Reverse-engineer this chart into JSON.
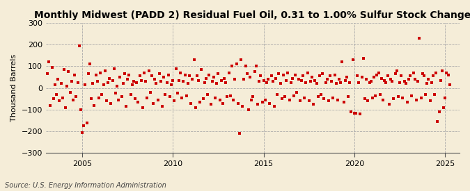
{
  "title": "Monthly Midwest (PADD 2) Residual Fuel Oil, 0.31 to 1.00% Sulfur Stock Change",
  "ylabel": "Thousand Barrels",
  "source": "Source: U.S. Energy Information Administration",
  "xlim": [
    2003.0,
    2025.8
  ],
  "ylim": [
    -300,
    300
  ],
  "xticks": [
    2005,
    2010,
    2015,
    2020,
    2025
  ],
  "yticks": [
    -300,
    -200,
    -100,
    0,
    100,
    200,
    300
  ],
  "background_color": "#F5EDD8",
  "plot_bg_color": "#F5EDD8",
  "marker_color": "#CC0000",
  "marker_size": 7,
  "title_fontsize": 10,
  "source_fontsize": 7,
  "data_x": [
    2003.08,
    2003.17,
    2003.25,
    2003.33,
    2003.42,
    2003.5,
    2003.58,
    2003.67,
    2003.75,
    2003.83,
    2003.92,
    2004.0,
    2004.08,
    2004.17,
    2004.25,
    2004.33,
    2004.42,
    2004.5,
    2004.58,
    2004.67,
    2004.75,
    2004.83,
    2004.92,
    2005.0,
    2005.08,
    2005.17,
    2005.25,
    2005.33,
    2005.42,
    2005.5,
    2005.58,
    2005.67,
    2005.75,
    2005.83,
    2005.92,
    2006.0,
    2006.08,
    2006.17,
    2006.25,
    2006.33,
    2006.42,
    2006.5,
    2006.58,
    2006.67,
    2006.75,
    2006.83,
    2006.92,
    2007.0,
    2007.08,
    2007.17,
    2007.25,
    2007.33,
    2007.42,
    2007.5,
    2007.58,
    2007.67,
    2007.75,
    2007.83,
    2007.92,
    2008.0,
    2008.08,
    2008.17,
    2008.25,
    2008.33,
    2008.42,
    2008.5,
    2008.58,
    2008.67,
    2008.75,
    2008.83,
    2008.92,
    2009.0,
    2009.08,
    2009.17,
    2009.25,
    2009.33,
    2009.42,
    2009.5,
    2009.58,
    2009.67,
    2009.75,
    2009.83,
    2009.92,
    2010.0,
    2010.08,
    2010.17,
    2010.25,
    2010.33,
    2010.42,
    2010.5,
    2010.58,
    2010.67,
    2010.75,
    2010.83,
    2010.92,
    2011.0,
    2011.08,
    2011.17,
    2011.25,
    2011.33,
    2011.42,
    2011.5,
    2011.58,
    2011.67,
    2011.75,
    2011.83,
    2011.92,
    2012.0,
    2012.08,
    2012.17,
    2012.25,
    2012.33,
    2012.42,
    2012.5,
    2012.58,
    2012.67,
    2012.75,
    2012.83,
    2012.92,
    2013.0,
    2013.08,
    2013.17,
    2013.25,
    2013.33,
    2013.42,
    2013.5,
    2013.58,
    2013.67,
    2013.75,
    2013.83,
    2013.92,
    2014.0,
    2014.08,
    2014.17,
    2014.25,
    2014.33,
    2014.42,
    2014.5,
    2014.58,
    2014.67,
    2014.75,
    2014.83,
    2014.92,
    2015.0,
    2015.08,
    2015.17,
    2015.25,
    2015.33,
    2015.42,
    2015.5,
    2015.58,
    2015.67,
    2015.75,
    2015.83,
    2015.92,
    2016.0,
    2016.08,
    2016.17,
    2016.25,
    2016.33,
    2016.42,
    2016.5,
    2016.58,
    2016.67,
    2016.75,
    2016.83,
    2016.92,
    2017.0,
    2017.08,
    2017.17,
    2017.25,
    2017.33,
    2017.42,
    2017.5,
    2017.58,
    2017.67,
    2017.75,
    2017.83,
    2017.92,
    2018.0,
    2018.08,
    2018.17,
    2018.25,
    2018.33,
    2018.42,
    2018.5,
    2018.58,
    2018.67,
    2018.75,
    2018.83,
    2018.92,
    2019.0,
    2019.08,
    2019.17,
    2019.25,
    2019.33,
    2019.42,
    2019.5,
    2019.58,
    2019.67,
    2019.75,
    2019.83,
    2019.92,
    2020.0,
    2020.08,
    2020.17,
    2020.25,
    2020.33,
    2020.42,
    2020.5,
    2020.58,
    2020.67,
    2020.75,
    2020.83,
    2020.92,
    2021.0,
    2021.08,
    2021.17,
    2021.25,
    2021.33,
    2021.42,
    2021.5,
    2021.58,
    2021.67,
    2021.75,
    2021.83,
    2021.92,
    2022.0,
    2022.08,
    2022.17,
    2022.25,
    2022.33,
    2022.42,
    2022.5,
    2022.58,
    2022.67,
    2022.75,
    2022.83,
    2022.92,
    2023.0,
    2023.08,
    2023.17,
    2023.25,
    2023.33,
    2023.42,
    2023.5,
    2023.58,
    2023.67,
    2023.75,
    2023.83,
    2023.92,
    2024.0,
    2024.08,
    2024.17,
    2024.25,
    2024.33,
    2024.42,
    2024.5,
    2024.58,
    2024.67,
    2024.75,
    2024.83,
    2024.92,
    2025.0,
    2025.08,
    2025.17,
    2025.25
  ],
  "data_y": [
    65,
    120,
    -80,
    95,
    -50,
    15,
    -30,
    40,
    -60,
    20,
    -45,
    85,
    -90,
    10,
    75,
    -20,
    30,
    -55,
    60,
    -40,
    25,
    195,
    -100,
    -205,
    -175,
    15,
    -160,
    65,
    110,
    -50,
    20,
    -80,
    60,
    30,
    -45,
    70,
    -30,
    15,
    80,
    -60,
    25,
    45,
    -70,
    35,
    90,
    -25,
    10,
    -55,
    50,
    -40,
    20,
    65,
    -85,
    40,
    60,
    -30,
    15,
    30,
    -50,
    25,
    -65,
    55,
    35,
    -90,
    70,
    30,
    -45,
    80,
    -20,
    55,
    -70,
    40,
    20,
    -55,
    65,
    30,
    -85,
    50,
    -30,
    25,
    60,
    -40,
    15,
    35,
    -60,
    90,
    -25,
    35,
    70,
    -45,
    30,
    60,
    -35,
    20,
    55,
    -70,
    40,
    130,
    -90,
    55,
    35,
    -65,
    85,
    -50,
    25,
    45,
    -30,
    60,
    -75,
    30,
    50,
    -45,
    20,
    65,
    -55,
    35,
    -70,
    45,
    25,
    -40,
    70,
    -35,
    100,
    -55,
    40,
    110,
    -70,
    -210,
    130,
    -85,
    40,
    100,
    65,
    -100,
    50,
    -55,
    -40,
    75,
    100,
    -75,
    30,
    55,
    -65,
    35,
    -55,
    25,
    40,
    -70,
    55,
    30,
    -85,
    45,
    -30,
    65,
    20,
    -50,
    60,
    -40,
    35,
    70,
    -55,
    25,
    45,
    -35,
    60,
    -20,
    40,
    -60,
    35,
    55,
    -45,
    25,
    70,
    -60,
    30,
    50,
    -75,
    35,
    20,
    -40,
    55,
    -30,
    65,
    -50,
    25,
    40,
    -60,
    55,
    30,
    -45,
    60,
    20,
    -55,
    40,
    25,
    120,
    -65,
    35,
    50,
    -40,
    25,
    -110,
    130,
    -115,
    -115,
    55,
    25,
    -120,
    50,
    135,
    -50,
    40,
    -60,
    25,
    30,
    -45,
    50,
    -35,
    60,
    70,
    -30,
    45,
    -55,
    35,
    25,
    55,
    -75,
    40,
    30,
    -50,
    65,
    80,
    -40,
    25,
    55,
    -45,
    30,
    20,
    -65,
    40,
    55,
    -35,
    70,
    40,
    -55,
    30,
    230,
    -45,
    65,
    55,
    -30,
    20,
    40,
    -60,
    25,
    55,
    -30,
    70,
    -155,
    -110,
    35,
    80,
    -90,
    -45,
    70,
    60,
    15
  ]
}
